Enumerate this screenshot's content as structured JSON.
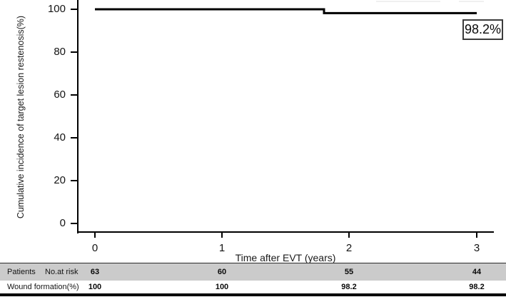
{
  "chart_data": {
    "type": "line",
    "subtype": "kaplan-meier-step",
    "title": "",
    "xlabel": "Time after EVT (years)",
    "ylabel": "Cumulative incidence of target lesion restenosis(%)",
    "xlim": [
      0,
      3.1
    ],
    "ylim": [
      0,
      104
    ],
    "x_ticks": [
      "0",
      "1",
      "2",
      "3"
    ],
    "y_ticks": [
      "100",
      "80",
      "60",
      "40",
      "20",
      "0"
    ],
    "grid": false,
    "legend_position": "none",
    "line_color": "#000000",
    "series": [
      {
        "name": "Wound formation(%)",
        "x": [
          0,
          1.8,
          1.8,
          3.0
        ],
        "y": [
          100,
          100,
          98.2,
          98.2
        ]
      }
    ],
    "annotation": {
      "text": "98.2%",
      "x": 3.0,
      "y": 93
    }
  },
  "risk_table": {
    "row1": {
      "label_left": "Patients",
      "label_right": "No.at risk",
      "values": [
        "63",
        "60",
        "55",
        "44"
      ],
      "bg_color": "#cbcbcb"
    },
    "row2": {
      "label": "Wound formation(%)",
      "values": [
        "100",
        "100",
        "98.2",
        "98.2"
      ]
    }
  }
}
